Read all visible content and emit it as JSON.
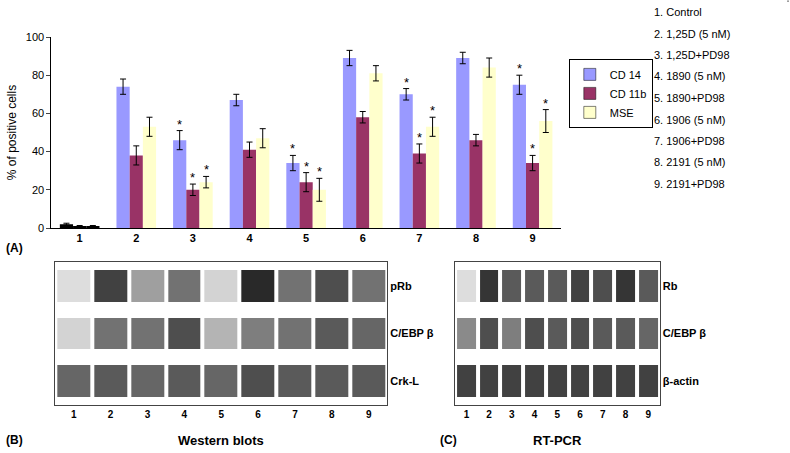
{
  "chart_data": [
    {
      "type": "bar",
      "panel": "(A)",
      "y_label": "% of positive cells",
      "categories": [
        "1",
        "2",
        "3",
        "4",
        "5",
        "6",
        "7",
        "8",
        "9"
      ],
      "ylim": [
        0,
        100
      ],
      "yticks": [
        0,
        20,
        40,
        60,
        80,
        100
      ],
      "grid": false,
      "legend": "right",
      "series": [
        {
          "name": "CD 14",
          "color": "#9999ff",
          "colors": [
            "#000000",
            "#9999ff",
            "#9999ff",
            "#9999ff",
            "#9999ff",
            "#9999ff",
            "#9999ff",
            "#9999ff",
            "#9999ff"
          ],
          "values": [
            2,
            74,
            46,
            67,
            34,
            89,
            70,
            89,
            75
          ],
          "errors": [
            0.5,
            4,
            5,
            3,
            4,
            4,
            3,
            3,
            5
          ],
          "significance": [
            null,
            null,
            "*",
            null,
            "*",
            null,
            "*",
            null,
            "*"
          ]
        },
        {
          "name": "CD 11b",
          "color": "#993366",
          "colors": [
            "#000000",
            "#993366",
            "#993366",
            "#993366",
            "#993366",
            "#993366",
            "#993366",
            "#993366",
            "#993366"
          ],
          "values": [
            1,
            38,
            20,
            41,
            24,
            58,
            39,
            46,
            34
          ],
          "errors": [
            0.3,
            5,
            3,
            4,
            5,
            3,
            5,
            3,
            4
          ],
          "significance": [
            null,
            null,
            "*",
            null,
            "*",
            null,
            "*",
            null,
            "*"
          ]
        },
        {
          "name": "MSE",
          "color": "#ffffcc",
          "colors": [
            "#000000",
            "#ffffcc",
            "#ffffcc",
            "#ffffcc",
            "#ffffcc",
            "#ffffcc",
            "#ffffcc",
            "#ffffcc",
            "#ffffcc"
          ],
          "values": [
            1,
            53,
            24,
            47,
            20,
            81,
            53,
            84,
            56
          ],
          "errors": [
            0.3,
            5,
            3,
            5,
            6,
            4,
            5,
            5,
            6
          ],
          "significance": [
            null,
            null,
            "*",
            null,
            "*",
            null,
            "*",
            null,
            "*"
          ]
        }
      ],
      "key": [
        "1. Control",
        "2. 1,25D (5 nM)",
        "3. 1,25D+PD98",
        "4. 1890 (5 nM)",
        "5. 1890+PD98",
        "6. 1906 (5 nM)",
        "7. 1906+PD98",
        "8. 2191 (5 nM)",
        "9. 2191+PD98"
      ]
    },
    {
      "type": "blot",
      "panel": "(B)",
      "title": "Western blots",
      "categories": [
        "1",
        "2",
        "3",
        "4",
        "5",
        "6",
        "7",
        "8",
        "9"
      ],
      "zlim": [
        0,
        1
      ],
      "rows": [
        {
          "name": "pRb",
          "intensity": [
            0.1,
            0.8,
            0.4,
            0.6,
            0.15,
            0.9,
            0.6,
            0.75,
            0.6
          ]
        },
        {
          "name": "C/EBP β",
          "intensity": [
            0.15,
            0.6,
            0.6,
            0.75,
            0.3,
            0.55,
            0.6,
            0.7,
            0.65
          ]
        },
        {
          "name": "Crk-L",
          "intensity": [
            0.65,
            0.7,
            0.65,
            0.7,
            0.65,
            0.75,
            0.7,
            0.7,
            0.7
          ]
        }
      ]
    },
    {
      "type": "blot",
      "panel": "(C)",
      "title": "RT-PCR",
      "categories": [
        "1",
        "2",
        "3",
        "4",
        "5",
        "6",
        "7",
        "8",
        "9"
      ],
      "zlim": [
        0,
        1
      ],
      "rows": [
        {
          "name": "Rb",
          "intensity": [
            0.1,
            0.85,
            0.7,
            0.7,
            0.7,
            0.8,
            0.75,
            0.85,
            0.7
          ]
        },
        {
          "name": "C/EBP β",
          "intensity": [
            0.5,
            0.75,
            0.55,
            0.75,
            0.7,
            0.75,
            0.7,
            0.7,
            0.65
          ]
        },
        {
          "name": "β-actin",
          "intensity": [
            0.8,
            0.8,
            0.8,
            0.8,
            0.8,
            0.8,
            0.8,
            0.8,
            0.8
          ]
        }
      ]
    }
  ]
}
